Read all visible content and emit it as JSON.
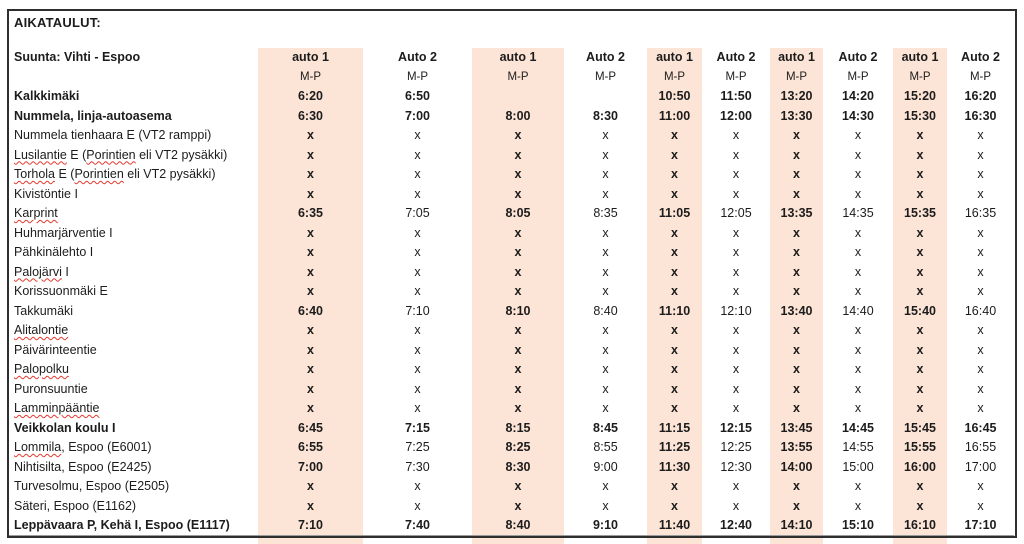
{
  "title": "AIKATAULUT:",
  "direction_label": "Suunta: Vihti - Espoo",
  "colors": {
    "highlight": "#fce4d6",
    "frame_border": "#2e2e2e",
    "spellcheck_squiggle": "#e5392f",
    "text": "#1c1c1c"
  },
  "columns": [
    {
      "label": "auto 1",
      "days": "M-P",
      "highlighted": true
    },
    {
      "label": "Auto 2",
      "days": "M-P",
      "highlighted": false
    },
    {
      "label": "auto 1",
      "days": "M-P",
      "highlighted": true
    },
    {
      "label": "Auto 2",
      "days": "M-P",
      "highlighted": false
    },
    {
      "label": "auto 1",
      "days": "M-P",
      "highlighted": true
    },
    {
      "label": "Auto 2",
      "days": "M-P",
      "highlighted": false
    },
    {
      "label": "auto 1",
      "days": "M-P",
      "highlighted": true
    },
    {
      "label": "Auto 2",
      "days": "M-P",
      "highlighted": false
    },
    {
      "label": "auto 1",
      "days": "M-P",
      "highlighted": true
    },
    {
      "label": "Auto 2",
      "days": "M-P",
      "highlighted": false
    }
  ],
  "rows": [
    {
      "bold": true,
      "name": [
        {
          "t": "Kalkkimäki",
          "sp": false
        }
      ],
      "times": [
        "6:20",
        "6:50",
        "",
        "",
        "10:50",
        "11:50",
        "13:20",
        "14:20",
        "15:20",
        "16:20"
      ]
    },
    {
      "bold": true,
      "name": [
        {
          "t": "Nummela, linja-autoasema",
          "sp": false
        }
      ],
      "times": [
        "6:30",
        "7:00",
        "8:00",
        "8:30",
        "11:00",
        "12:00",
        "13:30",
        "14:30",
        "15:30",
        "16:30"
      ]
    },
    {
      "bold": false,
      "name": [
        {
          "t": "Nummela tienhaara E (VT2 ramppi)",
          "sp": false
        }
      ],
      "times": [
        "x",
        "x",
        "x",
        "x",
        "x",
        "x",
        "x",
        "x",
        "x",
        "x"
      ]
    },
    {
      "bold": false,
      "name": [
        {
          "t": "Lusilantie",
          "sp": true
        },
        {
          "t": " E (",
          "sp": false
        },
        {
          "t": "Porintien",
          "sp": true
        },
        {
          "t": " eli VT2 pysäkki)",
          "sp": false
        }
      ],
      "times": [
        "x",
        "x",
        "x",
        "x",
        "x",
        "x",
        "x",
        "x",
        "x",
        "x"
      ]
    },
    {
      "bold": false,
      "name": [
        {
          "t": "Torhola",
          "sp": true
        },
        {
          "t": " E (",
          "sp": false
        },
        {
          "t": "Porintien",
          "sp": true
        },
        {
          "t": " eli VT2 pysäkki)",
          "sp": false
        }
      ],
      "times": [
        "x",
        "x",
        "x",
        "x",
        "x",
        "x",
        "x",
        "x",
        "x",
        "x"
      ]
    },
    {
      "bold": false,
      "name": [
        {
          "t": "Kivistöntie I",
          "sp": false
        }
      ],
      "times": [
        "x",
        "x",
        "x",
        "x",
        "x",
        "x",
        "x",
        "x",
        "x",
        "x"
      ]
    },
    {
      "bold": false,
      "name": [
        {
          "t": "Karprint",
          "sp": true
        }
      ],
      "times": [
        "6:35",
        "7:05",
        "8:05",
        "8:35",
        "11:05",
        "12:05",
        "13:35",
        "14:35",
        "15:35",
        "16:35"
      ]
    },
    {
      "bold": false,
      "name": [
        {
          "t": "Huhmarjärventie I",
          "sp": false
        }
      ],
      "times": [
        "x",
        "x",
        "x",
        "x",
        "x",
        "x",
        "x",
        "x",
        "x",
        "x"
      ]
    },
    {
      "bold": false,
      "name": [
        {
          "t": "Pähkinälehto I",
          "sp": false
        }
      ],
      "times": [
        "x",
        "x",
        "x",
        "x",
        "x",
        "x",
        "x",
        "x",
        "x",
        "x"
      ]
    },
    {
      "bold": false,
      "name": [
        {
          "t": "Palojärvi",
          "sp": true
        },
        {
          "t": " I",
          "sp": false
        }
      ],
      "times": [
        "x",
        "x",
        "x",
        "x",
        "x",
        "x",
        "x",
        "x",
        "x",
        "x"
      ]
    },
    {
      "bold": false,
      "name": [
        {
          "t": "Korissuonmäki E",
          "sp": false
        }
      ],
      "times": [
        "x",
        "x",
        "x",
        "x",
        "x",
        "x",
        "x",
        "x",
        "x",
        "x"
      ]
    },
    {
      "bold": false,
      "name": [
        {
          "t": "Takkumäki",
          "sp": false
        }
      ],
      "times": [
        "6:40",
        "7:10",
        "8:10",
        "8:40",
        "11:10",
        "12:10",
        "13:40",
        "14:40",
        "15:40",
        "16:40"
      ]
    },
    {
      "bold": false,
      "name": [
        {
          "t": "Alitalontie",
          "sp": true
        }
      ],
      "times": [
        "x",
        "x",
        "x",
        "x",
        "x",
        "x",
        "x",
        "x",
        "x",
        "x"
      ]
    },
    {
      "bold": false,
      "name": [
        {
          "t": "Päivärinteentie",
          "sp": false
        }
      ],
      "times": [
        "x",
        "x",
        "x",
        "x",
        "x",
        "x",
        "x",
        "x",
        "x",
        "x"
      ]
    },
    {
      "bold": false,
      "name": [
        {
          "t": "Palopolku",
          "sp": true
        }
      ],
      "times": [
        "x",
        "x",
        "x",
        "x",
        "x",
        "x",
        "x",
        "x",
        "x",
        "x"
      ]
    },
    {
      "bold": false,
      "name": [
        {
          "t": "Puronsuuntie",
          "sp": false
        }
      ],
      "times": [
        "x",
        "x",
        "x",
        "x",
        "x",
        "x",
        "x",
        "x",
        "x",
        "x"
      ]
    },
    {
      "bold": false,
      "name": [
        {
          "t": "Lamminpääntie",
          "sp": true
        }
      ],
      "times": [
        "x",
        "x",
        "x",
        "x",
        "x",
        "x",
        "x",
        "x",
        "x",
        "x"
      ]
    },
    {
      "bold": true,
      "name": [
        {
          "t": "Veikkolan koulu I",
          "sp": false
        }
      ],
      "times": [
        "6:45",
        "7:15",
        "8:15",
        "8:45",
        "11:15",
        "12:15",
        "13:45",
        "14:45",
        "15:45",
        "16:45"
      ]
    },
    {
      "bold": false,
      "name": [
        {
          "t": "Lommila",
          "sp": true
        },
        {
          "t": ", Espoo (E6001)",
          "sp": false
        }
      ],
      "times": [
        "6:55",
        "7:25",
        "8:25",
        "8:55",
        "11:25",
        "12:25",
        "13:55",
        "14:55",
        "15:55",
        "16:55"
      ]
    },
    {
      "bold": false,
      "name": [
        {
          "t": "Nihtisilta, Espoo (E2425)",
          "sp": false
        }
      ],
      "times": [
        "7:00",
        "7:30",
        "8:30",
        "9:00",
        "11:30",
        "12:30",
        "14:00",
        "15:00",
        "16:00",
        "17:00"
      ]
    },
    {
      "bold": false,
      "name": [
        {
          "t": "Turvesolmu, Espoo (E2505)",
          "sp": false
        }
      ],
      "times": [
        "x",
        "x",
        "x",
        "x",
        "x",
        "x",
        "x",
        "x",
        "x",
        "x"
      ]
    },
    {
      "bold": false,
      "name": [
        {
          "t": "Säteri, Espoo (E1162)",
          "sp": false
        }
      ],
      "times": [
        "x",
        "x",
        "x",
        "x",
        "x",
        "x",
        "x",
        "x",
        "x",
        "x"
      ]
    },
    {
      "bold": true,
      "name": [
        {
          "t": "Leppävaara P, Kehä I, Espoo (E1117)",
          "sp": false
        }
      ],
      "times": [
        "7:10",
        "7:40",
        "8:40",
        "9:10",
        "11:40",
        "12:40",
        "14:10",
        "15:10",
        "16:10",
        "17:10"
      ]
    }
  ]
}
